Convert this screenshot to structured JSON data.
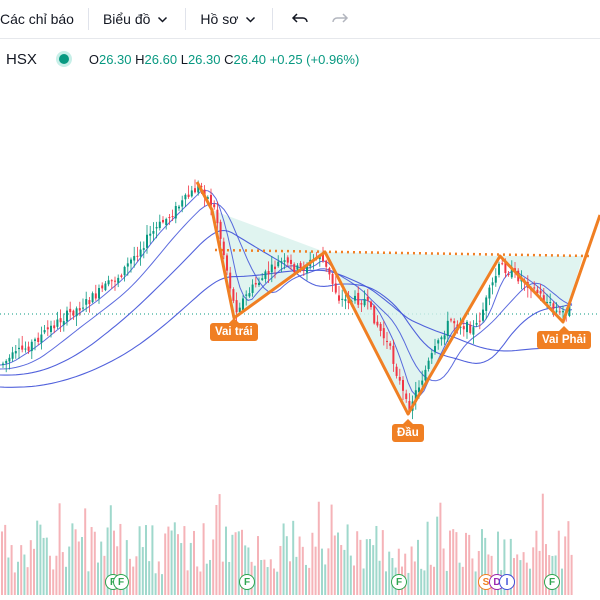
{
  "toolbar": {
    "indicators_label": "Các chỉ báo",
    "chart_label": "Biểu đồ",
    "profile_label": "Hồ sơ"
  },
  "legend": {
    "exchange": "HSX",
    "open_key": "O",
    "open": "26.30",
    "high_key": "H",
    "high": "26.60",
    "low_key": "L",
    "low": "26.30",
    "close_key": "C",
    "close": "26.40",
    "change": "+0.25 (+0.96%)"
  },
  "pattern": {
    "left_shoulder": "Vai trái",
    "head": "Đầu",
    "right_shoulder": "Vai Phải"
  },
  "events": [
    "F",
    "F",
    "F",
    "S",
    "D",
    "I",
    "F"
  ],
  "colors": {
    "up": "#089981",
    "down": "#f23645",
    "pattern": "#f07f23",
    "ma": "#3f51d8"
  }
}
